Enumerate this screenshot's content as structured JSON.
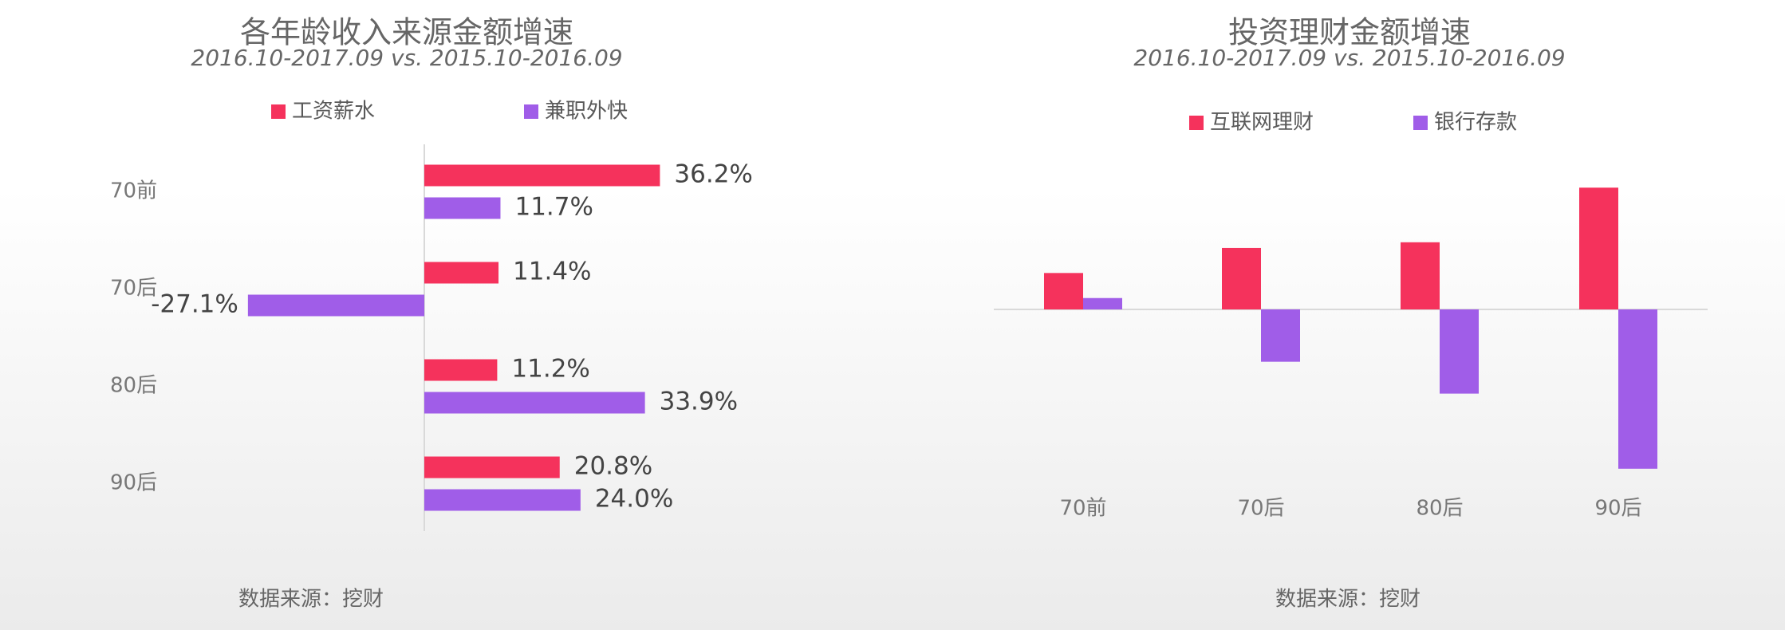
{
  "chart_data": [
    {
      "type": "hbar",
      "title": "各年龄收入来源金额增速",
      "subtitle": "2016.10-2017.09 vs. 2015.10-2016.09",
      "categories": [
        "70前",
        "70后",
        "80后",
        "90后"
      ],
      "series": [
        {
          "name": "工资薪水",
          "color": "#f5325c",
          "values": [
            36.2,
            11.4,
            11.2,
            20.8
          ],
          "value_labels": [
            "36.2%",
            "11.4%",
            "11.2%",
            "20.8%"
          ]
        },
        {
          "name": "兼职外快",
          "color": "#a05de8",
          "values": [
            11.7,
            -27.1,
            33.9,
            24.0
          ],
          "value_labels": [
            "11.7%",
            "-27.1%",
            "33.9%",
            "24.0%"
          ]
        }
      ],
      "source": "数据来源：挖财"
    },
    {
      "type": "bar",
      "title": "投资理财金额增速",
      "subtitle": "2016.10-2017.09 vs. 2015.10-2016.09",
      "categories": [
        "70前",
        "70后",
        "80后",
        "90后"
      ],
      "series": [
        {
          "name": "互联网理财",
          "color": "#f5325c",
          "values": [
            32,
            54,
            59,
            107
          ]
        },
        {
          "name": "银行存款",
          "color": "#a05de8",
          "values": [
            10,
            -46,
            -74,
            -140
          ]
        }
      ],
      "source": "数据来源：挖财"
    }
  ]
}
